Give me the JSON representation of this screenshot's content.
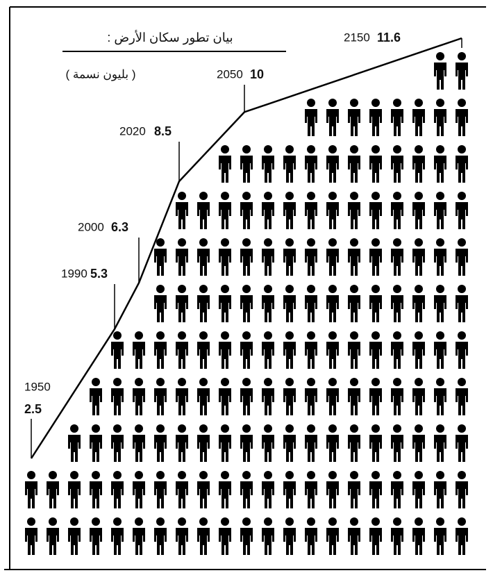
{
  "chart_data": {
    "type": "line",
    "title": "بيان تطور سكان الأرض :",
    "subtitle": "( بليون نسمة )",
    "categories": [
      "1950",
      "1990",
      "2000",
      "2020",
      "2050",
      "2150"
    ],
    "values": [
      2.5,
      5.3,
      6.3,
      8.5,
      10,
      11.6
    ],
    "color": "#000000"
  }
}
